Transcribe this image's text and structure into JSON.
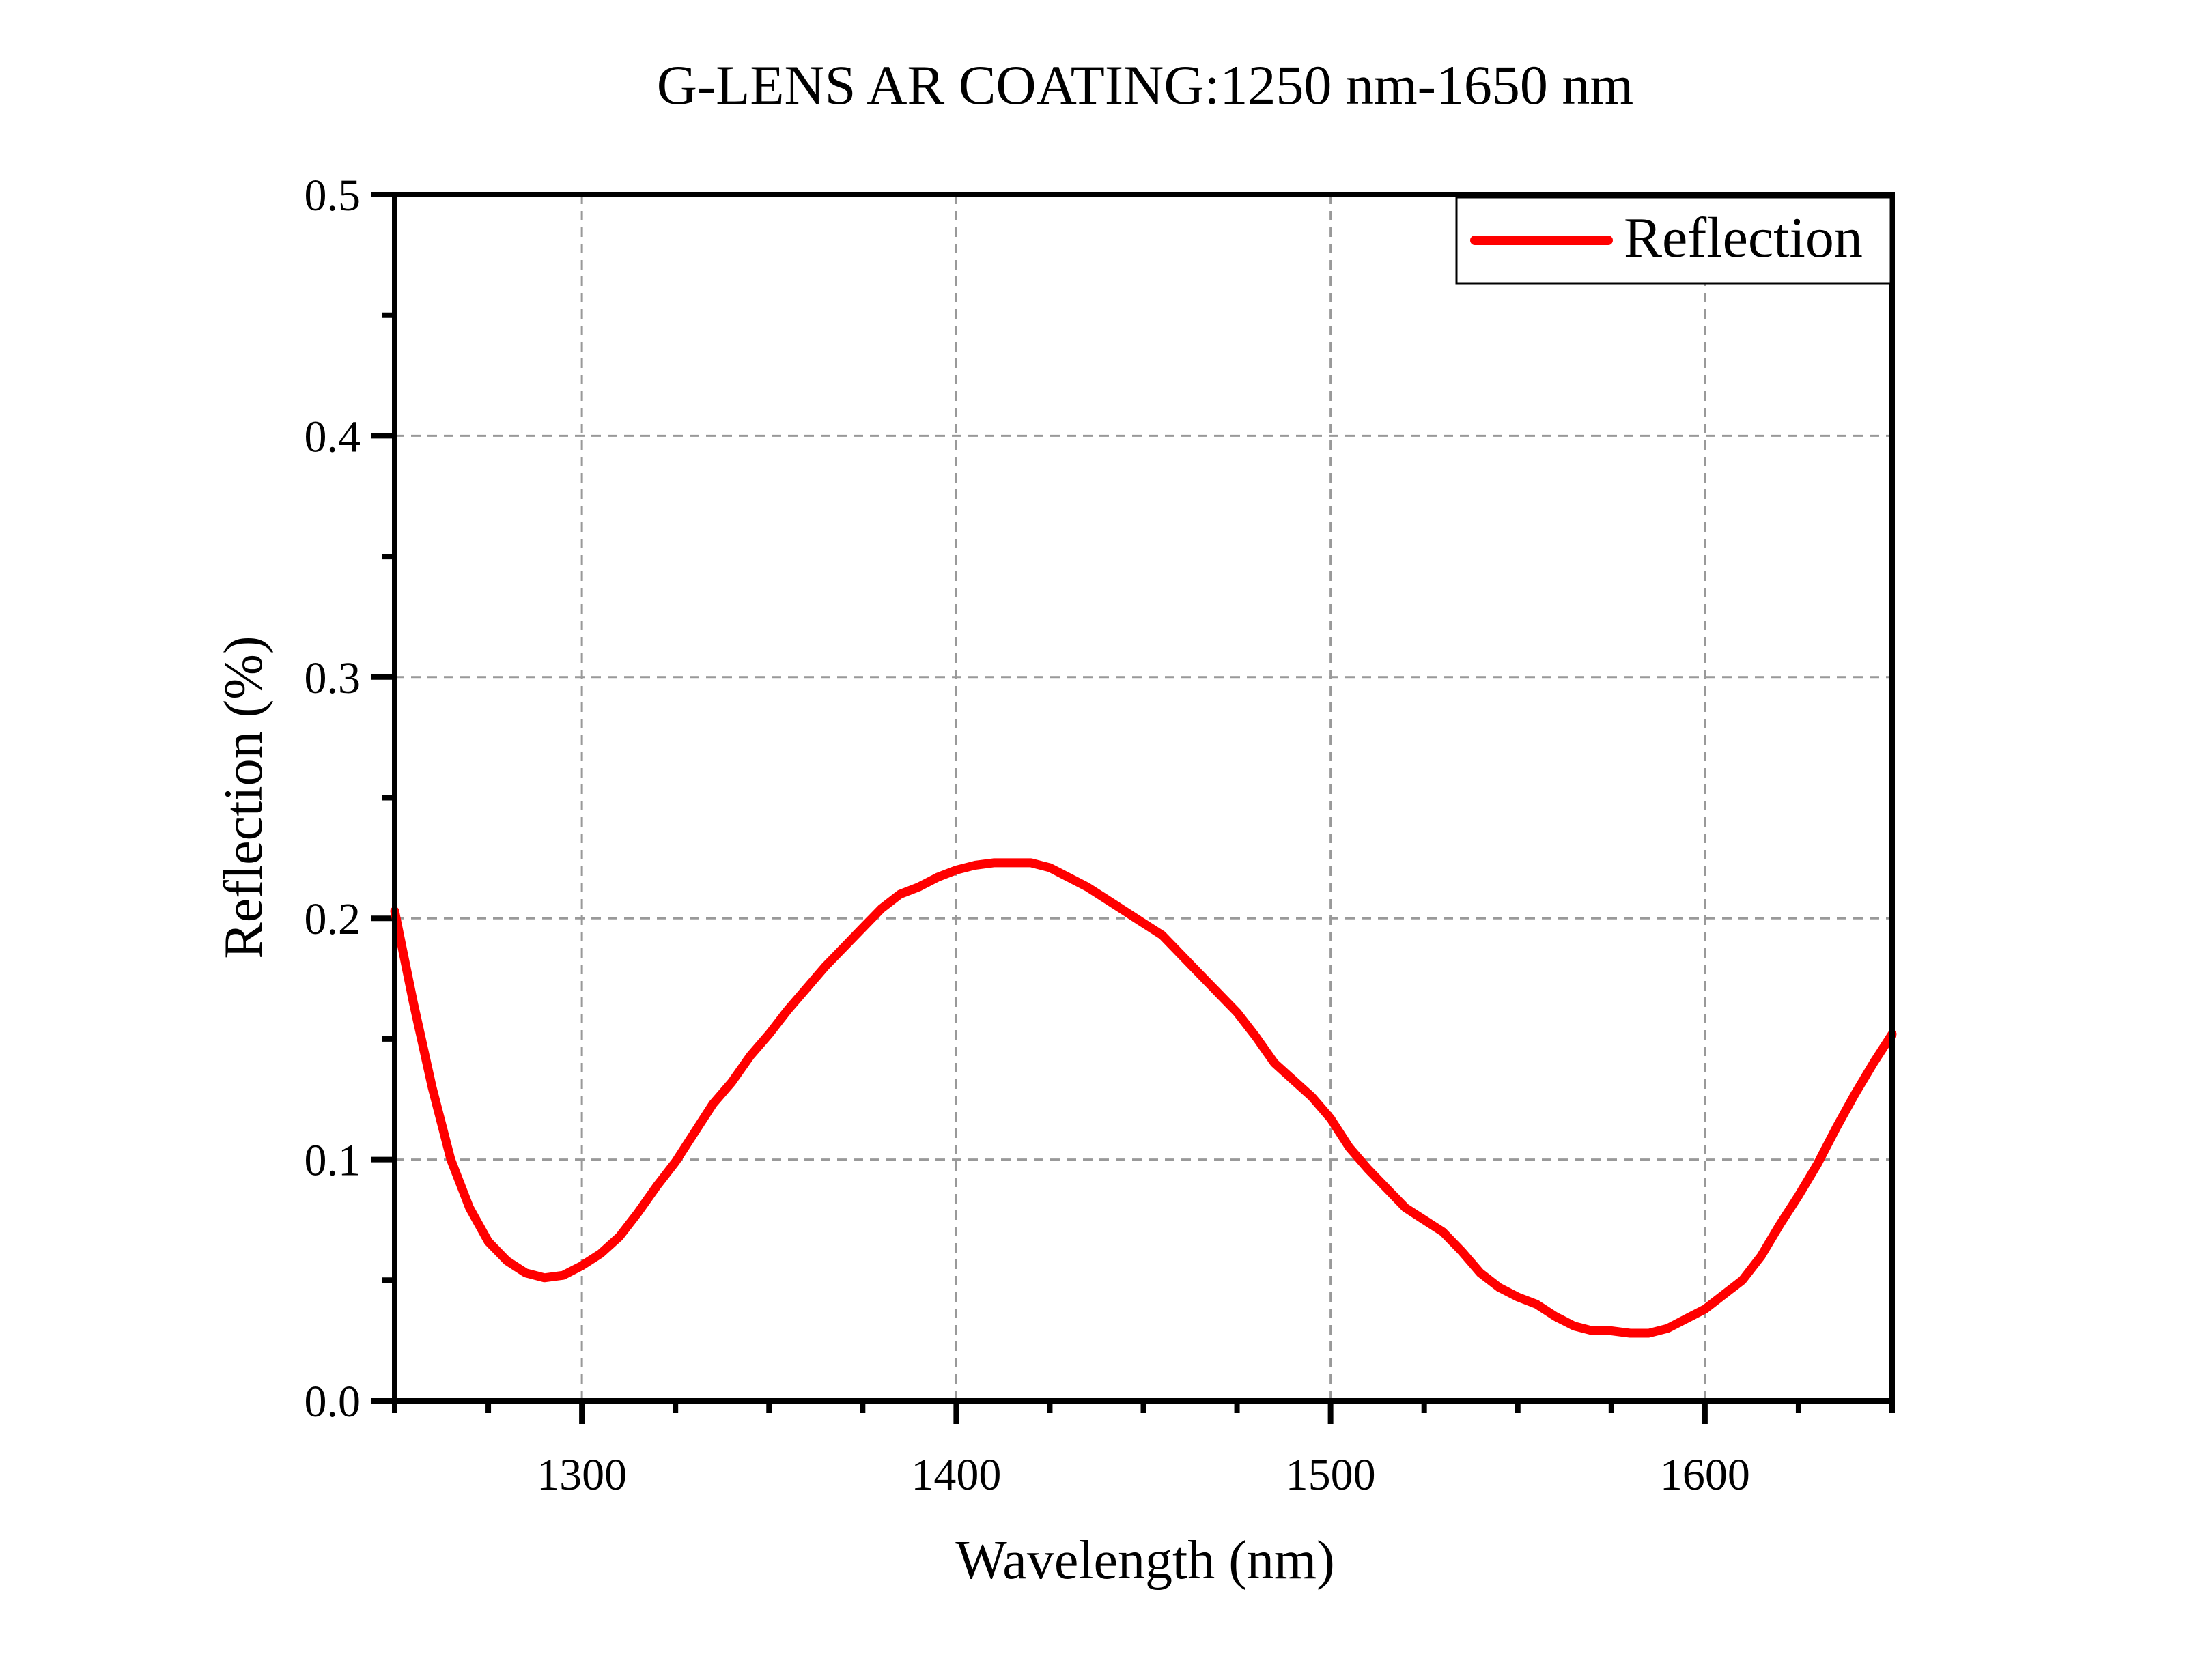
{
  "chart_data": {
    "type": "line",
    "title": "G-LENS AR COATING:1250 nm-1650 nm",
    "xlabel": "Wavelength (nm)",
    "ylabel": "Reflection (%)",
    "xlim": [
      1250,
      1650
    ],
    "ylim": [
      0,
      0.5
    ],
    "xticks": [
      1300,
      1400,
      1500,
      1600
    ],
    "xtick_labels": [
      "1300",
      "1400",
      "1500",
      "1600"
    ],
    "yticks": [
      0.0,
      0.1,
      0.2,
      0.3,
      0.4,
      0.5
    ],
    "ytick_labels": [
      "0.0",
      "0.1",
      "0.2",
      "0.3",
      "0.4",
      "0.5"
    ],
    "grid": true,
    "legend": {
      "placement": "top-right",
      "entries": [
        "Reflection"
      ]
    },
    "series": [
      {
        "name": "Reflection",
        "color": "#ff0000",
        "x": [
          1250,
          1255,
          1260,
          1265,
          1270,
          1275,
          1280,
          1285,
          1290,
          1295,
          1300,
          1305,
          1310,
          1315,
          1320,
          1325,
          1330,
          1335,
          1340,
          1345,
          1350,
          1355,
          1360,
          1365,
          1370,
          1375,
          1380,
          1385,
          1390,
          1395,
          1400,
          1405,
          1410,
          1415,
          1420,
          1425,
          1430,
          1435,
          1440,
          1445,
          1450,
          1455,
          1460,
          1465,
          1470,
          1475,
          1480,
          1485,
          1490,
          1495,
          1500,
          1505,
          1510,
          1515,
          1520,
          1525,
          1530,
          1535,
          1540,
          1545,
          1550,
          1555,
          1560,
          1565,
          1570,
          1575,
          1580,
          1585,
          1590,
          1595,
          1600,
          1605,
          1610,
          1615,
          1620,
          1625,
          1630,
          1635,
          1640,
          1645,
          1650
        ],
        "y": [
          0.203,
          0.165,
          0.13,
          0.1,
          0.08,
          0.066,
          0.058,
          0.053,
          0.051,
          0.052,
          0.056,
          0.061,
          0.068,
          0.078,
          0.089,
          0.099,
          0.111,
          0.123,
          0.132,
          0.143,
          0.152,
          0.162,
          0.171,
          0.18,
          0.188,
          0.196,
          0.204,
          0.21,
          0.213,
          0.217,
          0.22,
          0.222,
          0.223,
          0.223,
          0.223,
          0.221,
          0.217,
          0.213,
          0.208,
          0.203,
          0.198,
          0.193,
          0.185,
          0.177,
          0.169,
          0.161,
          0.151,
          0.14,
          0.133,
          0.126,
          0.117,
          0.105,
          0.096,
          0.088,
          0.08,
          0.075,
          0.07,
          0.062,
          0.053,
          0.047,
          0.043,
          0.04,
          0.035,
          0.031,
          0.029,
          0.029,
          0.028,
          0.028,
          0.03,
          0.034,
          0.038,
          0.044,
          0.05,
          0.06,
          0.073,
          0.085,
          0.098,
          0.113,
          0.127,
          0.14,
          0.152
        ]
      }
    ]
  }
}
